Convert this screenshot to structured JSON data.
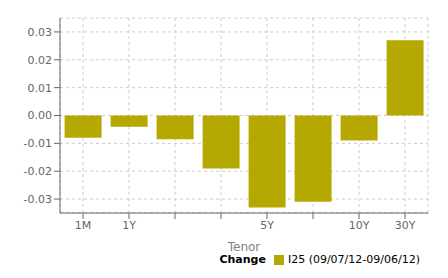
{
  "chart_data": {
    "type": "bar",
    "xlabel": "Tenor",
    "categories": [
      "1M",
      "1Y",
      null,
      null,
      "5Y",
      null,
      "10Y",
      "30Y"
    ],
    "series": [
      {
        "name": "I25 (09/07/12-09/06/12)",
        "color": "#b5a800",
        "values": [
          -0.008,
          -0.004,
          -0.0085,
          -0.019,
          -0.033,
          -0.031,
          -0.009,
          0.027
        ]
      }
    ],
    "ylim": [
      -0.035,
      0.035
    ],
    "yticks": [
      -0.03,
      -0.02,
      -0.01,
      {
        "value": 0,
        "label": "0.00"
      },
      0.01,
      0.02,
      0.03
    ],
    "grid": true,
    "legend": "lower right",
    "legend_title": "Change"
  }
}
